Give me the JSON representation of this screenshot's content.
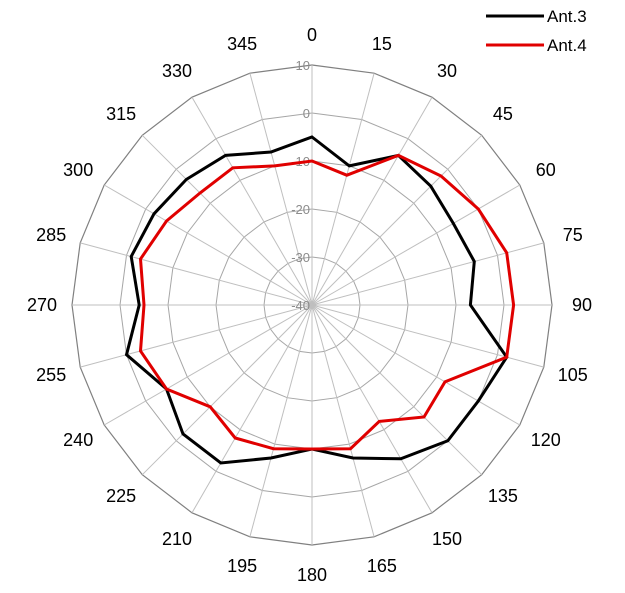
{
  "chart_data": {
    "type": "polar-line",
    "angles": [
      0,
      15,
      30,
      45,
      60,
      75,
      90,
      105,
      120,
      135,
      150,
      165,
      180,
      195,
      210,
      225,
      240,
      255,
      270,
      285,
      300,
      315,
      330,
      345
    ],
    "angle_labels": [
      "0",
      "15",
      "30",
      "45",
      "60",
      "75",
      "90",
      "105",
      "120",
      "135",
      "150",
      "165",
      "180",
      "195",
      "210",
      "225",
      "240",
      "255",
      "270",
      "285",
      "300",
      "315",
      "330",
      "345"
    ],
    "radial_ticks": [
      10,
      0,
      -10,
      -20,
      -30,
      -40
    ],
    "radial_tick_labels": [
      "10",
      "0",
      "-10",
      "-20",
      "-30",
      "-40"
    ],
    "rlim": [
      -40,
      10
    ],
    "grid": true,
    "legend": "top-right",
    "series": [
      {
        "name": "Ant.3",
        "color": "#000000",
        "values": [
          -5,
          -10,
          -4,
          -5,
          -6,
          -5,
          -7,
          2,
          0,
          0,
          -3,
          -7,
          -10,
          -7,
          -2,
          -2,
          -5,
          0,
          -4,
          -1,
          -2,
          -3,
          -4,
          -7
        ]
      },
      {
        "name": "Ant.4",
        "color": "#e00000",
        "values": [
          -10,
          -12,
          -4,
          -2,
          0,
          2,
          2,
          2,
          -8,
          -7,
          -12,
          -9,
          -10,
          -9,
          -8,
          -10,
          -5,
          -3,
          -5,
          -3,
          -5,
          -7,
          -7,
          -10
        ]
      }
    ]
  }
}
